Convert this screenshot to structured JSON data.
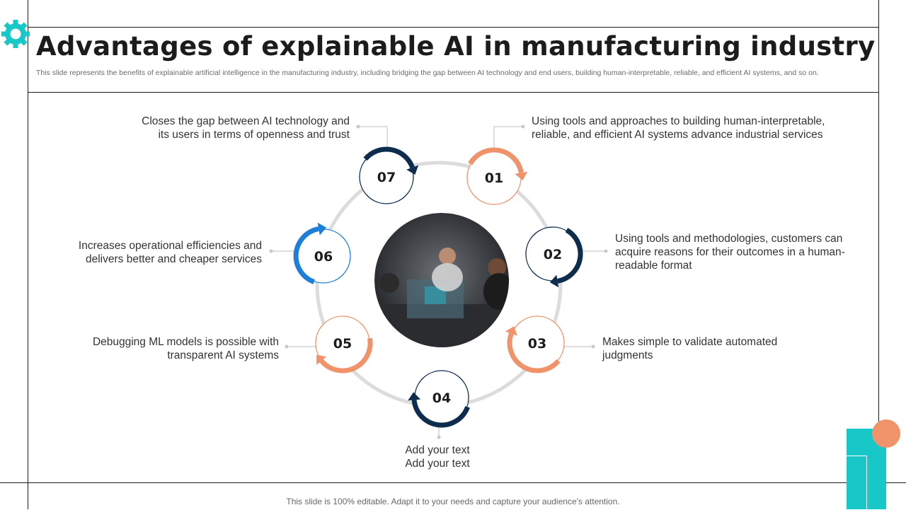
{
  "slide": {
    "title": "Advantages of explainable AI in manufacturing industry",
    "subtitle": "This slide represents the benefits of explainable artificial intelligence in the manufacturing industry, including bridging the gap between AI technology and end users, building human-interpretable, reliable, and efficient AI systems, and so on.",
    "footer": "This slide is 100% editable. Adapt it to your needs and capture your audience's attention."
  },
  "colors": {
    "orange": "#F0926A",
    "navy": "#0E2D4E",
    "blue": "#1E7FD8",
    "teal": "#18C7C7",
    "ring": "#DCDCDC"
  },
  "items": [
    {
      "number": "01",
      "line1": "Using tools and approaches to building human-interpretable,",
      "line2": "reliable, and efficient AI systems advance industrial services",
      "line3": ""
    },
    {
      "number": "02",
      "line1": "Using tools and methodologies, customers can",
      "line2": "acquire reasons for their outcomes in a human-",
      "line3": "readable format"
    },
    {
      "number": "03",
      "line1": "Makes simple to validate automated",
      "line2": "judgments",
      "line3": ""
    },
    {
      "number": "04",
      "line1": "Add your text",
      "line2": "Add your text",
      "line3": ""
    },
    {
      "number": "05",
      "line1": "Debugging ML models is possible with",
      "line2": "transparent AI systems",
      "line3": ""
    },
    {
      "number": "06",
      "line1": "Increases operational efficiencies and",
      "line2": "delivers better and cheaper services",
      "line3": ""
    },
    {
      "number": "07",
      "line1": "Closes the gap between AI technology  and",
      "line2": "its users in terms of openness and trust",
      "line3": ""
    }
  ],
  "center_image": {
    "alt": "team-working-on-robot-photo"
  }
}
